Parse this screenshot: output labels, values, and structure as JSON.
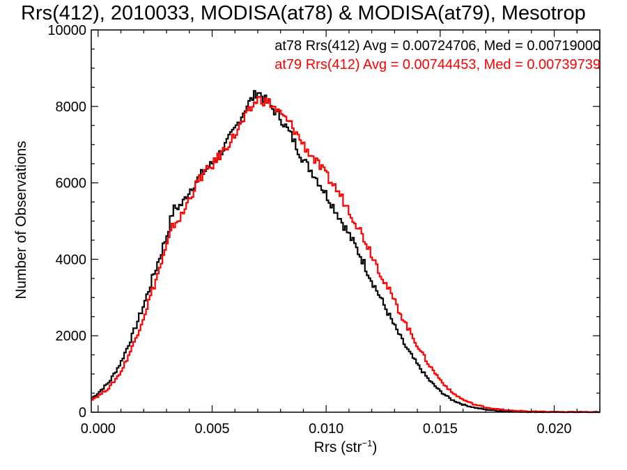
{
  "chart_data": {
    "type": "line",
    "title": "Rrs(412), 2010033, MODISA(at78) & MODISA(at79), Mesotrop",
    "xlabel_main": "Rrs (str",
    "xlabel_sup": "−1",
    "xlabel_tail": ")",
    "ylabel": "Number of Observations",
    "xlim": [
      -0.0003,
      0.022
    ],
    "ylim": [
      0,
      10000
    ],
    "x_ticks": [
      {
        "value": 0.0,
        "label": "0.000"
      },
      {
        "value": 0.005,
        "label": "0.005"
      },
      {
        "value": 0.01,
        "label": "0.010"
      },
      {
        "value": 0.015,
        "label": "0.015"
      },
      {
        "value": 0.02,
        "label": "0.020"
      }
    ],
    "y_ticks": [
      {
        "value": 0,
        "label": "0"
      },
      {
        "value": 2000,
        "label": "2000"
      },
      {
        "value": 4000,
        "label": "4000"
      },
      {
        "value": 6000,
        "label": "6000"
      },
      {
        "value": 8000,
        "label": "8000"
      },
      {
        "value": 10000,
        "label": "10000"
      }
    ],
    "annotations": [
      {
        "text": "at78 Rrs(412) Avg = 0.00724706, Med = 0.00719000",
        "color": "#000000"
      },
      {
        "text": "at79 Rrs(412) Avg = 0.00744453, Med = 0.00739739",
        "color": "#ff0000"
      }
    ],
    "series": [
      {
        "id": "at78",
        "color": "#000000",
        "x": [
          -0.0003,
          0.0,
          0.0005,
          0.001,
          0.0015,
          0.002,
          0.0025,
          0.003,
          0.0033,
          0.0037,
          0.004,
          0.0045,
          0.005,
          0.0055,
          0.006,
          0.0065,
          0.007,
          0.0075,
          0.008,
          0.0085,
          0.009,
          0.0095,
          0.01,
          0.0105,
          0.011,
          0.0115,
          0.012,
          0.0125,
          0.013,
          0.0135,
          0.014,
          0.0145,
          0.015,
          0.0155,
          0.016,
          0.0165,
          0.017,
          0.0175,
          0.018,
          0.019,
          0.02,
          0.021,
          0.022
        ],
        "y": [
          350,
          500,
          800,
          1300,
          2000,
          2800,
          3700,
          4600,
          5300,
          5450,
          5800,
          6200,
          6500,
          6900,
          7400,
          8000,
          8400,
          8050,
          7700,
          7200,
          6600,
          6200,
          5700,
          5200,
          4650,
          4100,
          3450,
          2850,
          2250,
          1700,
          1250,
          850,
          550,
          330,
          200,
          120,
          70,
          40,
          20,
          8,
          4,
          2,
          1
        ]
      },
      {
        "id": "at79",
        "color": "#ff0000",
        "x": [
          -0.0003,
          0.0,
          0.0005,
          0.001,
          0.0015,
          0.002,
          0.0025,
          0.003,
          0.0033,
          0.0037,
          0.004,
          0.0045,
          0.005,
          0.0055,
          0.006,
          0.0065,
          0.007,
          0.0075,
          0.008,
          0.0085,
          0.009,
          0.0095,
          0.01,
          0.0105,
          0.011,
          0.0115,
          0.012,
          0.0125,
          0.013,
          0.0135,
          0.014,
          0.0145,
          0.015,
          0.0155,
          0.016,
          0.0165,
          0.017,
          0.0175,
          0.018,
          0.019,
          0.02,
          0.021,
          0.022
        ],
        "y": [
          330,
          420,
          650,
          1050,
          1700,
          2500,
          3400,
          4300,
          4900,
          5150,
          5600,
          6150,
          6450,
          6850,
          7250,
          7750,
          8200,
          8100,
          7800,
          7500,
          7000,
          6600,
          6200,
          5800,
          5300,
          4750,
          4150,
          3500,
          2900,
          2300,
          1750,
          1250,
          850,
          520,
          330,
          200,
          130,
          80,
          45,
          20,
          8,
          3,
          1
        ]
      }
    ]
  }
}
